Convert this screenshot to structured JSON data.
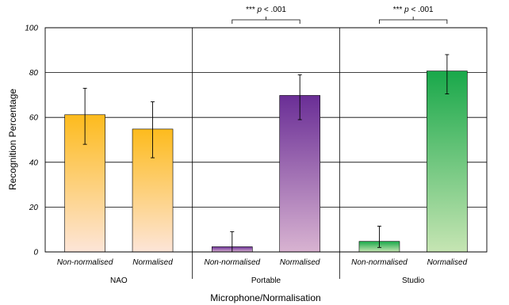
{
  "chart_data": {
    "type": "bar",
    "xlabel": "Microphone/Normalisation",
    "ylabel": "Recognition Percentage",
    "ylim": [
      0,
      100
    ],
    "yticks": [
      "0",
      "20",
      "40",
      "60",
      "80",
      "100"
    ],
    "grid": "horizontal",
    "groups": [
      {
        "name": "NAO",
        "colors": [
          "#fdbb1d",
          "#fde5d8"
        ],
        "bars": [
          {
            "category": "Non-normalised",
            "value": 61.2,
            "err_low": 48,
            "err_high": 73
          },
          {
            "category": "Normalised",
            "value": 54.8,
            "err_low": 42,
            "err_high": 67
          }
        ]
      },
      {
        "name": "Portable",
        "colors": [
          "#6a2e96",
          "#d8b3d1"
        ],
        "bars": [
          {
            "category": "Non-normalised",
            "value": 2.3,
            "err_low": 0,
            "err_high": 9
          },
          {
            "category": "Normalised",
            "value": 69.8,
            "err_low": 59,
            "err_high": 79
          }
        ]
      },
      {
        "name": "Studio",
        "colors": [
          "#19a84a",
          "#c6e5b3"
        ],
        "bars": [
          {
            "category": "Non-normalised",
            "value": 4.7,
            "err_low": 2,
            "err_high": 11.5
          },
          {
            "category": "Normalised",
            "value": 80.7,
            "err_low": 70.5,
            "err_high": 88
          }
        ]
      }
    ],
    "annotations": [
      {
        "group": "Portable",
        "stars": "***",
        "p": "p",
        "rest": " < .001"
      },
      {
        "group": "Studio",
        "stars": "***",
        "p": "p",
        "rest": " < .001"
      }
    ]
  }
}
